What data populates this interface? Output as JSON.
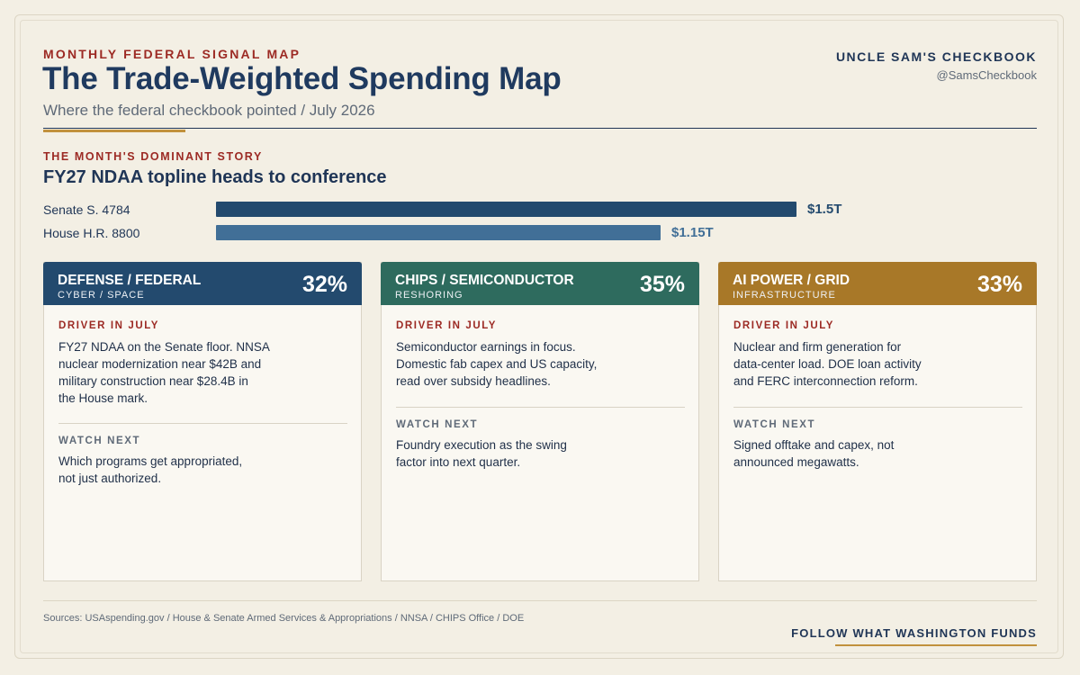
{
  "header": {
    "kicker": "MONTHLY FEDERAL SIGNAL MAP",
    "title": "The Trade-Weighted Spending Map",
    "subtitle": "Where the federal checkbook pointed / July 2026",
    "brand_name": "UNCLE SAM'S CHECKBOOK",
    "brand_handle": "@SamsCheckbook"
  },
  "story": {
    "kicker": "THE MONTH'S DOMINANT STORY",
    "title": "FY27 NDAA topline heads to conference",
    "bars": [
      {
        "label": "Senate S. 4784",
        "value": 1.5,
        "value_label": "$1.5T",
        "color": "#234a6e"
      },
      {
        "label": "House H.R. 8800",
        "value": 1.15,
        "value_label": "$1.15T",
        "color": "#416f97"
      }
    ]
  },
  "cards": [
    {
      "name": "DEFENSE / FEDERAL",
      "sub": "CYBER / SPACE",
      "pct": "32%",
      "color": "#234a6e",
      "driver_label": "DRIVER IN JULY",
      "driver_lines": [
        "FY27 NDAA on the Senate floor. NNSA",
        "nuclear modernization near $42B and",
        "military construction near $28.4B in",
        "the House mark."
      ],
      "watch_label": "WATCH NEXT",
      "watch_lines": [
        "Which programs get appropriated,",
        "not just authorized."
      ]
    },
    {
      "name": "CHIPS / SEMICONDUCTOR",
      "sub": "RESHORING",
      "pct": "35%",
      "color": "#2e6b5e",
      "driver_label": "DRIVER IN JULY",
      "driver_lines": [
        "Semiconductor earnings in focus.",
        "Domestic fab capex and US capacity,",
        "read over subsidy headlines."
      ],
      "watch_label": "WATCH NEXT",
      "watch_lines": [
        "Foundry execution as the swing",
        "factor into next quarter."
      ]
    },
    {
      "name": "AI POWER / GRID",
      "sub": "INFRASTRUCTURE",
      "pct": "33%",
      "color": "#a87828",
      "driver_label": "DRIVER IN JULY",
      "driver_lines": [
        "Nuclear and firm generation for",
        "data-center load. DOE loan activity",
        "and FERC interconnection reform."
      ],
      "watch_label": "WATCH NEXT",
      "watch_lines": [
        "Signed offtake and capex, not",
        "announced megawatts."
      ]
    }
  ],
  "footer": {
    "sources": "Sources: USAspending.gov / House & Senate Armed Services & Appropriations / NNSA / CHIPS Office / DOE",
    "follow": "FOLLOW WHAT WASHINGTON FUNDS"
  }
}
